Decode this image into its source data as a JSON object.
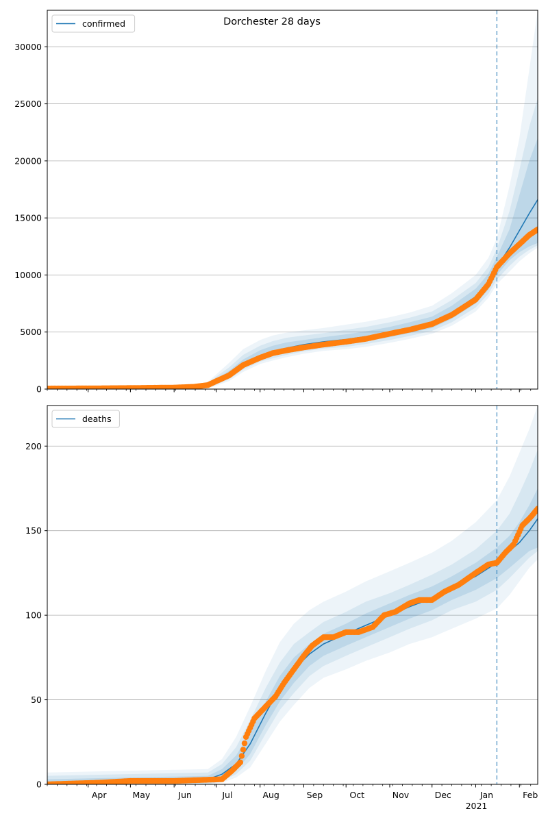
{
  "figure": {
    "title": "Dorchester 28 days"
  },
  "chart_data": [
    {
      "type": "line",
      "legend": {
        "label": "confirmed",
        "placement": "upper left"
      },
      "x_axis": {
        "type": "date",
        "range": [
          "2020-03-03",
          "2021-02-14"
        ],
        "tick_labels": [
          "Apr",
          "May",
          "Jun",
          "Jul",
          "Aug",
          "Sep",
          "Oct",
          "Nov",
          "Dec",
          "Jan",
          "Feb"
        ],
        "tick_dates": [
          "2020-04-01",
          "2020-05-01",
          "2020-06-01",
          "2020-07-01",
          "2020-08-01",
          "2020-09-01",
          "2020-10-01",
          "2020-11-01",
          "2020-12-01",
          "2021-01-01",
          "2021-02-01"
        ],
        "year_label": "2021",
        "show_tick_labels": false
      },
      "y_axis": {
        "range": [
          0,
          33200
        ],
        "ticks": [
          0,
          5000,
          10000,
          15000,
          20000,
          25000,
          30000
        ]
      },
      "grid": "horizontal",
      "forecast_line_date": "2021-01-16",
      "colors": {
        "model": "#1f77b4",
        "observed": "#ff7f0e",
        "band": "#1f77b4",
        "vline": "#1f77b4"
      },
      "model": {
        "x": [
          "2020-03-03",
          "2020-06-15",
          "2020-06-25",
          "2020-07-01",
          "2020-07-10",
          "2020-07-20",
          "2020-08-01",
          "2020-08-10",
          "2020-08-20",
          "2020-09-01",
          "2020-09-15",
          "2020-10-01",
          "2020-10-15",
          "2020-11-01",
          "2020-11-15",
          "2020-12-01",
          "2020-12-15",
          "2021-01-01",
          "2021-01-10",
          "2021-01-16",
          "2021-01-25",
          "2021-02-01",
          "2021-02-08",
          "2021-02-14"
        ],
        "y": [
          20,
          80,
          250,
          700,
          1300,
          2200,
          2900,
          3300,
          3600,
          3900,
          4150,
          4350,
          4600,
          5000,
          5350,
          5850,
          6700,
          8100,
          9300,
          10700,
          12400,
          13900,
          15400,
          16600
        ],
        "bands": [
          {
            "lower": [
              0,
              40,
              150,
              500,
              1000,
              1900,
              2600,
              2900,
              3200,
              3500,
              3750,
              3950,
              4200,
              4550,
              4900,
              5350,
              6150,
              7500,
              8700,
              10000,
              11300,
              12000,
              12500,
              12800
            ],
            "upper": [
              40,
              150,
              400,
              900,
              1600,
              2600,
              3400,
              3800,
              4100,
              4300,
              4550,
              4800,
              5050,
              5450,
              5850,
              6350,
              7300,
              8800,
              10100,
              11600,
              14000,
              17000,
              20000,
              22000
            ]
          },
          {
            "lower": [
              0,
              20,
              100,
              400,
              850,
              1700,
              2400,
              2700,
              3000,
              3300,
              3550,
              3700,
              3950,
              4300,
              4650,
              5100,
              5850,
              7150,
              8350,
              9600,
              10800,
              11600,
              12200,
              12600
            ],
            "upper": [
              60,
              200,
              500,
              1100,
              1900,
              3000,
              3800,
              4200,
              4500,
              4700,
              4900,
              5200,
              5450,
              5850,
              6250,
              6800,
              7800,
              9300,
              10700,
              12300,
              15600,
              19200,
              23000,
              25500
            ]
          },
          {
            "lower": [
              0,
              10,
              60,
              300,
              700,
              1500,
              2200,
              2500,
              2800,
              3100,
              3350,
              3500,
              3700,
              4050,
              4400,
              4850,
              5550,
              6800,
              8000,
              9200,
              10300,
              11200,
              11900,
              12400
            ],
            "upper": [
              80,
              300,
              650,
              1300,
              2300,
              3500,
              4300,
              4700,
              4950,
              5150,
              5350,
              5650,
              5900,
              6300,
              6700,
              7300,
              8400,
              10000,
              11500,
              13200,
              17800,
              22000,
              28000,
              33200
            ]
          }
        ]
      },
      "observed": {
        "x": [
          "2020-03-03",
          "2020-04-01",
          "2020-05-01",
          "2020-06-01",
          "2020-06-15",
          "2020-06-25",
          "2020-07-01",
          "2020-07-10",
          "2020-07-20",
          "2020-08-01",
          "2020-08-10",
          "2020-08-20",
          "2020-09-01",
          "2020-09-15",
          "2020-10-01",
          "2020-10-15",
          "2020-11-01",
          "2020-11-15",
          "2020-12-01",
          "2020-12-15",
          "2021-01-01",
          "2021-01-10",
          "2021-01-16",
          "2021-01-25",
          "2021-02-01",
          "2021-02-08",
          "2021-02-14"
        ],
        "y": [
          50,
          60,
          90,
          130,
          200,
          350,
          700,
          1200,
          2100,
          2750,
          3150,
          3400,
          3650,
          3900,
          4150,
          4400,
          4850,
          5200,
          5700,
          6500,
          7850,
          9200,
          10700,
          11900,
          12700,
          13500,
          14000
        ]
      }
    },
    {
      "type": "line",
      "legend": {
        "label": "deaths",
        "placement": "upper left"
      },
      "x_axis": {
        "type": "date",
        "range": [
          "2020-03-03",
          "2021-02-14"
        ],
        "tick_labels": [
          "Apr",
          "May",
          "Jun",
          "Jul",
          "Aug",
          "Sep",
          "Oct",
          "Nov",
          "Dec",
          "Jan",
          "Feb"
        ],
        "tick_dates": [
          "2020-04-01",
          "2020-05-01",
          "2020-06-01",
          "2020-07-01",
          "2020-08-01",
          "2020-09-01",
          "2020-10-01",
          "2020-11-01",
          "2020-12-01",
          "2021-01-01",
          "2021-02-01"
        ],
        "year_label": "2021",
        "show_tick_labels": true
      },
      "y_axis": {
        "range": [
          0,
          224
        ],
        "ticks": [
          0,
          50,
          100,
          150,
          200
        ]
      },
      "grid": "horizontal",
      "forecast_line_date": "2021-01-16",
      "colors": {
        "model": "#1f77b4",
        "observed": "#ff7f0e",
        "band": "#1f77b4",
        "vline": "#1f77b4"
      },
      "model": {
        "x": [
          "2020-03-03",
          "2020-06-25",
          "2020-07-05",
          "2020-07-15",
          "2020-07-25",
          "2020-08-05",
          "2020-08-15",
          "2020-08-25",
          "2020-09-05",
          "2020-09-15",
          "2020-10-01",
          "2020-10-15",
          "2020-11-01",
          "2020-11-15",
          "2020-12-01",
          "2020-12-15",
          "2021-01-01",
          "2021-01-16",
          "2021-01-25",
          "2021-02-01",
          "2021-02-08",
          "2021-02-14"
        ],
        "y": [
          1,
          3,
          6,
          12,
          24,
          42,
          57,
          68,
          77,
          83,
          89,
          94,
          100,
          105,
          110,
          116,
          123,
          131,
          138,
          143,
          150,
          157
        ],
        "bands": [
          {
            "lower": [
              0,
              1,
              3,
              8,
              18,
              35,
              49,
              60,
              70,
              76,
              82,
              87,
              93,
              98,
              103,
              109,
              115,
              122,
              128,
              133,
              138,
              140
            ],
            "upper": [
              3,
              5,
              9,
              17,
              31,
              49,
              64,
              75,
              83,
              89,
              95,
              101,
              107,
              112,
              117,
              123,
              131,
              140,
              147,
              155,
              165,
              175
            ]
          },
          {
            "lower": [
              0,
              0,
              2,
              6,
              14,
              30,
              44,
              54,
              64,
              70,
              76,
              81,
              87,
              92,
              97,
              103,
              108,
              115,
              122,
              128,
              134,
              138
            ],
            "upper": [
              5,
              7,
              12,
              22,
              38,
              57,
              72,
              83,
              90,
              96,
              102,
              108,
              113,
              118,
              124,
              130,
              139,
              150,
              160,
              172,
              185,
              198
            ]
          },
          {
            "lower": [
              0,
              0,
              1,
              4,
              10,
              24,
              37,
              47,
              57,
              63,
              68,
              73,
              78,
              83,
              87,
              92,
              98,
              104,
              112,
              120,
              128,
              133
            ],
            "upper": [
              7,
              9,
              15,
              28,
              46,
              67,
              84,
              95,
              103,
              108,
              114,
              120,
              126,
              131,
              137,
              144,
              155,
              168,
              182,
              196,
              210,
              224
            ]
          }
        ]
      },
      "observed": {
        "x": [
          "2020-03-03",
          "2020-04-10",
          "2020-05-01",
          "2020-06-01",
          "2020-07-05",
          "2020-07-12",
          "2020-07-18",
          "2020-07-22",
          "2020-07-28",
          "2020-08-05",
          "2020-08-12",
          "2020-08-18",
          "2020-08-25",
          "2020-09-01",
          "2020-09-07",
          "2020-09-15",
          "2020-09-22",
          "2020-10-01",
          "2020-10-10",
          "2020-10-20",
          "2020-10-28",
          "2020-11-05",
          "2020-11-15",
          "2020-11-22",
          "2020-12-01",
          "2020-12-10",
          "2020-12-20",
          "2021-01-01",
          "2021-01-10",
          "2021-01-16",
          "2021-01-22",
          "2021-01-28",
          "2021-02-03",
          "2021-02-09",
          "2021-02-14"
        ],
        "y": [
          0,
          1,
          2,
          2,
          3,
          8,
          13,
          28,
          39,
          46,
          52,
          60,
          68,
          76,
          82,
          87,
          87,
          90,
          90,
          93,
          100,
          102,
          107,
          109,
          109,
          114,
          118,
          125,
          130,
          131,
          137,
          142,
          153,
          158,
          163
        ]
      }
    }
  ]
}
